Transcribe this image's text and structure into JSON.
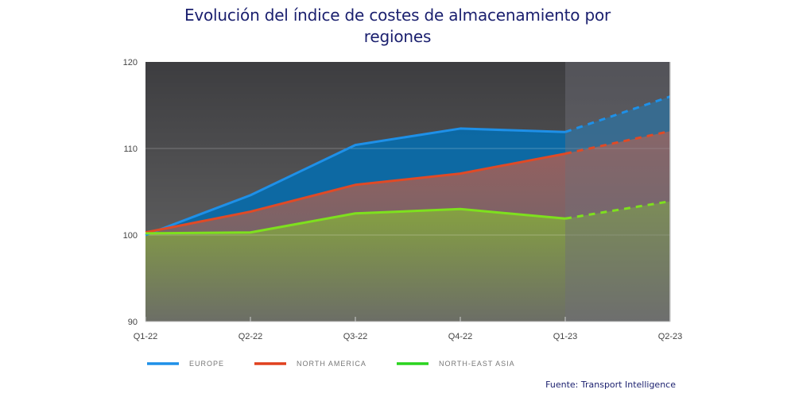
{
  "chart_data": {
    "type": "area",
    "title": "Evolución del índice de costes de almacenamiento por regiones",
    "title_lines": [
      "Evolución del índice de costes de almacenamiento por",
      "regiones"
    ],
    "xlabel": "",
    "ylabel": "",
    "categories": [
      "Q1-22",
      "Q2-22",
      "Q3-22",
      "Q4-22",
      "Q1-23",
      "Q2-23"
    ],
    "ylim": [
      90,
      120
    ],
    "yticks": [
      90,
      100,
      110,
      120
    ],
    "grid": true,
    "forecast_from_index": 4,
    "legend_position": "bottom-left",
    "series": [
      {
        "name": "EUROPE",
        "color": "#1e90e8",
        "fill": "#0a6aa8",
        "values": [
          100.0,
          104.6,
          110.4,
          112.3,
          111.9,
          116.0
        ]
      },
      {
        "name": "NORTH AMERICA",
        "color": "#e04a26",
        "fill": "#9a6468",
        "values": [
          100.3,
          102.7,
          105.8,
          107.1,
          109.4,
          112.0
        ]
      },
      {
        "name": "NORTH-EAST ASIA",
        "color": "#7ee01e",
        "fill": "#8aa044",
        "values": [
          100.2,
          100.3,
          102.5,
          103.0,
          101.9,
          103.9
        ]
      }
    ],
    "legend_colors": [
      "#1e90e8",
      "#e0401e",
      "#2ad41e"
    ],
    "source": "Fuente: Transport Intelligence"
  }
}
